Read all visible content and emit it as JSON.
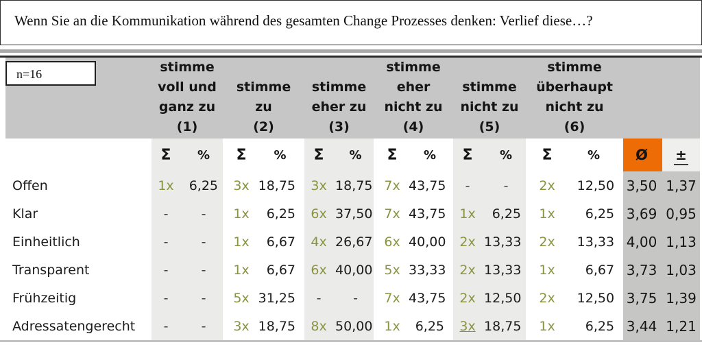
{
  "title": "Wenn Sie an die Kommunikation während des gesamten Change Prozesses denken: Verlief diese…?",
  "sample_size_label": "n=16",
  "table": {
    "sum_symbol": "Σ",
    "percent_symbol": "%",
    "mean_symbol": "Ø",
    "deviation_symbol": "±",
    "answer_options": [
      {
        "label": "stimme\nvoll und\nganz zu\n(1)"
      },
      {
        "label": "stimme\nzu\n(2)"
      },
      {
        "label": "stimme\neher zu\n(3)"
      },
      {
        "label": "stimme\neher\nnicht zu\n(4)"
      },
      {
        "label": "stimme\nnicht zu\n(5)"
      },
      {
        "label": "stimme\nüberhaupt\nnicht zu\n(6)"
      }
    ],
    "rows": [
      {
        "label": "Offen",
        "cells": [
          {
            "count": "1x",
            "pct": "6,25"
          },
          {
            "count": "3x",
            "pct": "18,75"
          },
          {
            "count": "3x",
            "pct": "18,75"
          },
          {
            "count": "7x",
            "pct": "43,75"
          },
          {
            "count": "-",
            "pct": "-"
          },
          {
            "count": "2x",
            "pct": "12,50"
          }
        ],
        "mean": "3,50",
        "deviation": "1,37"
      },
      {
        "label": "Klar",
        "cells": [
          {
            "count": "-",
            "pct": "-"
          },
          {
            "count": "1x",
            "pct": "6,25"
          },
          {
            "count": "6x",
            "pct": "37,50"
          },
          {
            "count": "7x",
            "pct": "43,75"
          },
          {
            "count": "1x",
            "pct": "6,25"
          },
          {
            "count": "1x",
            "pct": "6,25"
          }
        ],
        "mean": "3,69",
        "deviation": "0,95"
      },
      {
        "label": "Einheitlich",
        "cells": [
          {
            "count": "-",
            "pct": "-"
          },
          {
            "count": "1x",
            "pct": "6,67"
          },
          {
            "count": "4x",
            "pct": "26,67"
          },
          {
            "count": "6x",
            "pct": "40,00"
          },
          {
            "count": "2x",
            "pct": "13,33"
          },
          {
            "count": "2x",
            "pct": "13,33"
          }
        ],
        "mean": "4,00",
        "deviation": "1,13"
      },
      {
        "label": "Transparent",
        "cells": [
          {
            "count": "-",
            "pct": "-"
          },
          {
            "count": "1x",
            "pct": "6,67"
          },
          {
            "count": "6x",
            "pct": "40,00"
          },
          {
            "count": "5x",
            "pct": "33,33"
          },
          {
            "count": "2x",
            "pct": "13,33"
          },
          {
            "count": "1x",
            "pct": "6,67"
          }
        ],
        "mean": "3,73",
        "deviation": "1,03"
      },
      {
        "label": "Frühzeitig",
        "cells": [
          {
            "count": "-",
            "pct": "-"
          },
          {
            "count": "5x",
            "pct": "31,25"
          },
          {
            "count": "-",
            "pct": "-"
          },
          {
            "count": "7x",
            "pct": "43,75"
          },
          {
            "count": "2x",
            "pct": "12,50"
          },
          {
            "count": "2x",
            "pct": "12,50"
          }
        ],
        "mean": "3,75",
        "deviation": "1,39"
      },
      {
        "label": "Adressatengerecht",
        "cells": [
          {
            "count": "-",
            "pct": "-"
          },
          {
            "count": "3x",
            "pct": "18,75"
          },
          {
            "count": "8x",
            "pct": "50,00"
          },
          {
            "count": "1x",
            "pct": "6,25"
          },
          {
            "count": "3x",
            "pct": "18,75",
            "underline": true
          },
          {
            "count": "1x",
            "pct": "6,25"
          }
        ],
        "mean": "3,44",
        "deviation": "1,21"
      }
    ]
  },
  "colors": {
    "header_gray": "#c6c6c6",
    "band_light": "#ebebe9",
    "band_white": "#ffffff",
    "stat_gray": "#c6c6c4",
    "mean_accent_orange": "#ed6c05",
    "count_olive": "#8a9440"
  }
}
